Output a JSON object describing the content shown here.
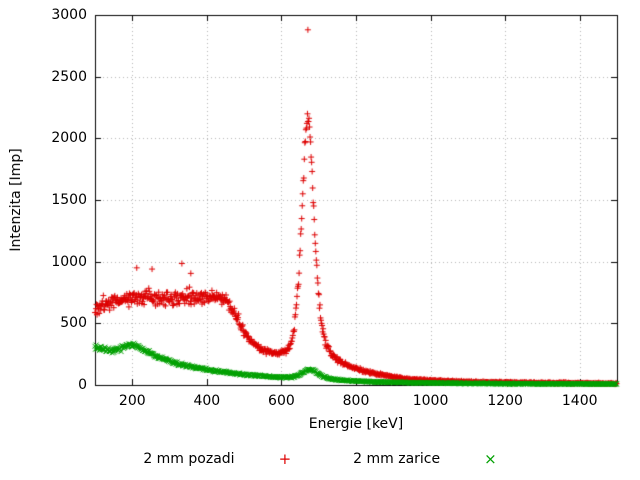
{
  "chart_data": {
    "type": "scatter",
    "title": "",
    "xlabel": "Energie [keV]",
    "ylabel": "Intenzita [Imp]",
    "xlim": [
      100,
      1500
    ],
    "ylim": [
      0,
      3000
    ],
    "xticks": [
      200,
      400,
      600,
      800,
      1000,
      1200,
      1400
    ],
    "yticks": [
      0,
      500,
      1000,
      1500,
      2000,
      2500,
      3000
    ],
    "grid": true,
    "legend_position": "bottom-center",
    "sample_step_kev": 1.4,
    "series": [
      {
        "name": "2 mm pozadi",
        "marker": "plus",
        "marker_symbol": "+",
        "color": "#dd0000",
        "profile": [
          [
            100,
            590
          ],
          [
            110,
            620
          ],
          [
            120,
            640
          ],
          [
            140,
            660
          ],
          [
            160,
            680
          ],
          [
            180,
            690
          ],
          [
            200,
            700
          ],
          [
            220,
            705
          ],
          [
            240,
            710
          ],
          [
            260,
            705
          ],
          [
            280,
            700
          ],
          [
            300,
            705
          ],
          [
            320,
            710
          ],
          [
            340,
            715
          ],
          [
            360,
            710
          ],
          [
            380,
            705
          ],
          [
            400,
            710
          ],
          [
            415,
            715
          ],
          [
            430,
            710
          ],
          [
            445,
            700
          ],
          [
            455,
            670
          ],
          [
            465,
            630
          ],
          [
            470,
            600
          ],
          [
            480,
            540
          ],
          [
            490,
            480
          ],
          [
            500,
            430
          ],
          [
            510,
            390
          ],
          [
            520,
            355
          ],
          [
            530,
            330
          ],
          [
            545,
            300
          ],
          [
            560,
            280
          ],
          [
            575,
            265
          ],
          [
            590,
            255
          ],
          [
            600,
            260
          ],
          [
            615,
            280
          ],
          [
            625,
            330
          ],
          [
            635,
            480
          ],
          [
            645,
            800
          ],
          [
            652,
            1200
          ],
          [
            658,
            1600
          ],
          [
            664,
            2000
          ],
          [
            669,
            2180
          ],
          [
            674,
            2150
          ],
          [
            680,
            1850
          ],
          [
            686,
            1450
          ],
          [
            692,
            1100
          ],
          [
            698,
            800
          ],
          [
            705,
            560
          ],
          [
            712,
            420
          ],
          [
            720,
            330
          ],
          [
            730,
            270
          ],
          [
            745,
            215
          ],
          [
            760,
            185
          ],
          [
            780,
            160
          ],
          [
            800,
            135
          ],
          [
            820,
            115
          ],
          [
            840,
            100
          ],
          [
            860,
            88
          ],
          [
            880,
            75
          ],
          [
            900,
            65
          ],
          [
            930,
            52
          ],
          [
            960,
            44
          ],
          [
            1000,
            36
          ],
          [
            1050,
            30
          ],
          [
            1100,
            26
          ],
          [
            1150,
            23
          ],
          [
            1200,
            20
          ],
          [
            1300,
            17
          ],
          [
            1400,
            14
          ],
          [
            1500,
            12
          ]
        ],
        "noise": [
          [
            100,
            55
          ],
          [
            200,
            65
          ],
          [
            300,
            70
          ],
          [
            400,
            70
          ],
          [
            450,
            60
          ],
          [
            500,
            40
          ],
          [
            560,
            28
          ],
          [
            600,
            22
          ],
          [
            630,
            35
          ],
          [
            660,
            80
          ],
          [
            680,
            80
          ],
          [
            700,
            55
          ],
          [
            730,
            32
          ],
          [
            760,
            22
          ],
          [
            800,
            16
          ],
          [
            900,
            11
          ],
          [
            1000,
            8
          ],
          [
            1500,
            6
          ]
        ],
        "outliers": [
          [
            212,
            950
          ],
          [
            253,
            940
          ],
          [
            333,
            985
          ],
          [
            357,
            905
          ],
          [
            671,
            2880
          ]
        ]
      },
      {
        "name": "2 mm zarice",
        "marker": "cross",
        "marker_symbol": "×",
        "color": "#00a000",
        "profile": [
          [
            100,
            310
          ],
          [
            115,
            300
          ],
          [
            130,
            285
          ],
          [
            145,
            280
          ],
          [
            160,
            290
          ],
          [
            175,
            305
          ],
          [
            190,
            320
          ],
          [
            200,
            325
          ],
          [
            210,
            318
          ],
          [
            225,
            295
          ],
          [
            240,
            270
          ],
          [
            260,
            240
          ],
          [
            280,
            215
          ],
          [
            300,
            195
          ],
          [
            320,
            175
          ],
          [
            340,
            160
          ],
          [
            360,
            148
          ],
          [
            380,
            136
          ],
          [
            400,
            125
          ],
          [
            430,
            110
          ],
          [
            460,
            98
          ],
          [
            490,
            88
          ],
          [
            520,
            80
          ],
          [
            550,
            72
          ],
          [
            580,
            65
          ],
          [
            610,
            62
          ],
          [
            630,
            65
          ],
          [
            645,
            78
          ],
          [
            658,
            100
          ],
          [
            668,
            120
          ],
          [
            676,
            128
          ],
          [
            684,
            120
          ],
          [
            692,
            105
          ],
          [
            700,
            88
          ],
          [
            710,
            72
          ],
          [
            725,
            58
          ],
          [
            740,
            48
          ],
          [
            760,
            40
          ],
          [
            780,
            35
          ],
          [
            810,
            30
          ],
          [
            850,
            26
          ],
          [
            900,
            22
          ],
          [
            950,
            19
          ],
          [
            1000,
            17
          ],
          [
            1100,
            13
          ],
          [
            1200,
            11
          ],
          [
            1300,
            10
          ],
          [
            1400,
            9
          ],
          [
            1500,
            8
          ]
        ],
        "noise": [
          [
            100,
            22
          ],
          [
            200,
            22
          ],
          [
            300,
            16
          ],
          [
            400,
            12
          ],
          [
            500,
            9
          ],
          [
            600,
            7
          ],
          [
            680,
            10
          ],
          [
            800,
            6
          ],
          [
            1000,
            5
          ],
          [
            1500,
            4
          ]
        ],
        "outliers": []
      }
    ]
  }
}
